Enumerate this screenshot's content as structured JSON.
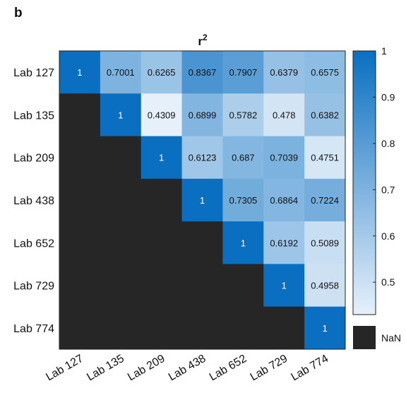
{
  "panel_label": "b",
  "chart_data": {
    "type": "heatmap",
    "title": "r",
    "title_superscript": "2",
    "xlabel": "",
    "ylabel": "",
    "labels": [
      "Lab 127",
      "Lab 135",
      "Lab 209",
      "Lab 438",
      "Lab 652",
      "Lab 729",
      "Lab 774"
    ],
    "matrix": [
      [
        1,
        0.7001,
        0.6265,
        0.8367,
        0.7907,
        0.6379,
        0.6575
      ],
      [
        null,
        1,
        0.4309,
        0.6899,
        0.5782,
        0.478,
        0.6382
      ],
      [
        null,
        null,
        1,
        0.6123,
        0.687,
        0.7039,
        0.4751
      ],
      [
        null,
        null,
        null,
        1,
        0.7305,
        0.6864,
        0.7224
      ],
      [
        null,
        null,
        null,
        null,
        1,
        0.6192,
        0.5089
      ],
      [
        null,
        null,
        null,
        null,
        null,
        1,
        0.4958
      ],
      [
        null,
        null,
        null,
        null,
        null,
        null,
        1
      ]
    ],
    "cell_text": [
      [
        "1",
        "0.7001",
        "0.6265",
        "0.8367",
        "0.7907",
        "0.6379",
        "0.6575"
      ],
      [
        "",
        "1",
        "0.4309",
        "0.6899",
        "0.5782",
        "0.478",
        "0.6382"
      ],
      [
        "",
        "",
        "1",
        "0.6123",
        "0.687",
        "0.7039",
        "0.4751"
      ],
      [
        "",
        "",
        "",
        "1",
        "0.7305",
        "0.6864",
        "0.7224"
      ],
      [
        "",
        "",
        "",
        "",
        "1",
        "0.6192",
        "0.5089"
      ],
      [
        "",
        "",
        "",
        "",
        "",
        "1",
        "0.4958"
      ],
      [
        "",
        "",
        "",
        "",
        "",
        "",
        "1"
      ]
    ],
    "colorbar": {
      "range": [
        0.43,
        1
      ],
      "ticks": [
        0.5,
        0.6,
        0.7,
        0.8,
        0.9,
        1
      ],
      "tick_labels": [
        "0.5",
        "0.6",
        "0.7",
        "0.8",
        "0.9",
        "1"
      ],
      "color_low": "#e6f0fa",
      "color_high": "#0a6fc0"
    },
    "nan_label": "NaN",
    "nan_color": "#262626",
    "text_color_light": "#ffffff",
    "text_color_dark": "#111111"
  }
}
